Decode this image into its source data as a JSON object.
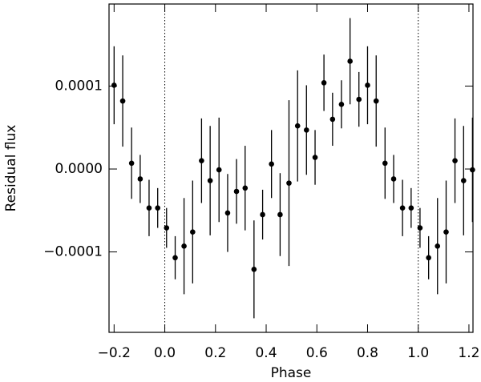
{
  "chart_data": {
    "type": "scatter",
    "xlabel": "Phase",
    "ylabel": "Residual flux",
    "color": "#000000",
    "x": [
      -0.2,
      -0.166,
      -0.131,
      -0.097,
      -0.062,
      -0.028,
      0.007,
      0.041,
      0.076,
      0.11,
      0.145,
      0.179,
      0.214,
      0.248,
      0.283,
      0.317,
      0.352,
      0.386,
      0.421,
      0.455,
      0.49,
      0.524,
      0.559,
      0.593,
      0.628,
      0.662,
      0.697,
      0.731,
      0.766,
      0.8,
      0.834,
      0.869,
      0.903,
      0.938,
      0.972,
      1.007,
      1.041,
      1.076,
      1.11,
      1.145,
      1.179,
      1.214
    ],
    "values": [
      0.000101,
      8.2e-05,
      7e-06,
      -1.2e-05,
      -4.7e-05,
      -4.7e-05,
      -7.1e-05,
      -0.000107,
      -9.3e-05,
      -7.6e-05,
      1e-05,
      -1.4e-05,
      -1e-06,
      -5.3e-05,
      -2.7e-05,
      -2.3e-05,
      -0.000121,
      -5.5e-05,
      6e-06,
      -5.5e-05,
      -1.7e-05,
      5.2e-05,
      4.7e-05,
      1.4e-05,
      0.000104,
      6e-05,
      7.8e-05,
      0.00013,
      8.4e-05,
      0.000101,
      8.2e-05,
      7e-06,
      -1.2e-05,
      -4.7e-05,
      -4.7e-05,
      -7.1e-05,
      -0.000107,
      -9.3e-05,
      -7.6e-05,
      1e-05,
      -1.4e-05,
      -1e-06
    ],
    "errors": [
      4.7e-05,
      5.5e-05,
      4.3e-05,
      2.9e-05,
      3.4e-05,
      2.4e-05,
      2.4e-05,
      2.6e-05,
      5.8e-05,
      6.2e-05,
      5.1e-05,
      6.6e-05,
      6.3e-05,
      4.7e-05,
      3.9e-05,
      5.1e-05,
      5.9e-05,
      3e-05,
      4.1e-05,
      5e-05,
      0.0001,
      6.7e-05,
      5.4e-05,
      3.3e-05,
      3.4e-05,
      3.2e-05,
      2.9e-05,
      5.2e-05,
      3.3e-05,
      4.7e-05,
      5.5e-05,
      4.3e-05,
      2.9e-05,
      3.4e-05,
      2.4e-05,
      2.4e-05,
      2.6e-05,
      5.8e-05,
      6.2e-05,
      5.1e-05,
      6.6e-05,
      6.3e-05
    ],
    "xlim": [
      -0.22,
      1.216
    ],
    "ylim": [
      -0.000197,
      0.000199
    ],
    "xticks": [
      {
        "value": -0.2,
        "label": "−0.2"
      },
      {
        "value": 0,
        "label": "0.0"
      },
      {
        "value": 0.2,
        "label": "0.2"
      },
      {
        "value": 0.4,
        "label": "0.4"
      },
      {
        "value": 0.6,
        "label": "0.6"
      },
      {
        "value": 0.8,
        "label": "0.8"
      },
      {
        "value": 1,
        "label": "1.0"
      },
      {
        "value": 1.2,
        "label": "1.2"
      }
    ],
    "yticks": [
      {
        "value": -0.0001,
        "label": "−0.0001"
      },
      {
        "value": 0,
        "label": "0.0000"
      },
      {
        "value": 0.0001,
        "label": "0.0001"
      }
    ],
    "vlines": [
      0,
      1
    ]
  }
}
